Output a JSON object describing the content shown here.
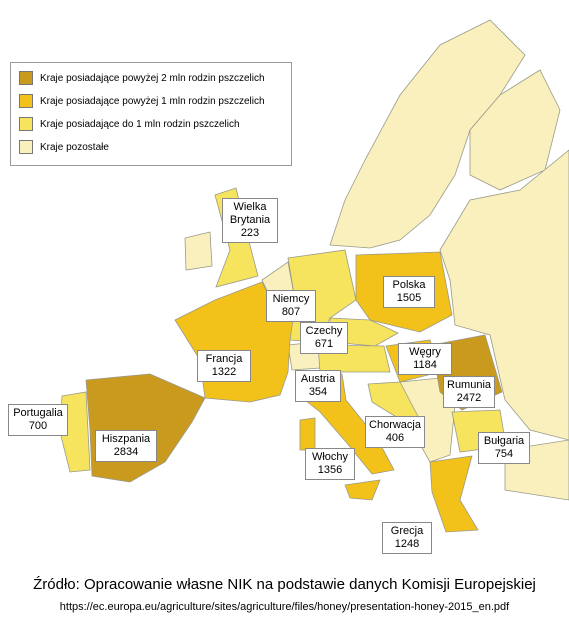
{
  "legend": {
    "items": [
      {
        "label": "Kraje posiadające powyżej 2 mln rodzin pszczelich",
        "color": "#c99a1e"
      },
      {
        "label": "Kraje posiadające powyżej 1 mln rodzin pszczelich",
        "color": "#f2c21a"
      },
      {
        "label": "Kraje posiadające do 1 mln rodzin pszczelich",
        "color": "#f7e45e"
      },
      {
        "label": "Kraje pozostałe",
        "color": "#f9f0bd"
      }
    ]
  },
  "countries": [
    {
      "name": "Wielka Brytania",
      "value": 223,
      "color": "#f7e45e"
    },
    {
      "name": "Niemcy",
      "value": 807,
      "color": "#f7e45e"
    },
    {
      "name": "Polska",
      "value": 1505,
      "color": "#f2c21a"
    },
    {
      "name": "Francja",
      "value": 1322,
      "color": "#f2c21a"
    },
    {
      "name": "Czechy",
      "value": 671,
      "color": "#f7e45e"
    },
    {
      "name": "Węgry",
      "value": 1184,
      "color": "#f2c21a"
    },
    {
      "name": "Austria",
      "value": 354,
      "color": "#f7e45e"
    },
    {
      "name": "Rumunia",
      "value": 2472,
      "color": "#c99a1e"
    },
    {
      "name": "Portugalia",
      "value": 700,
      "color": "#f7e45e"
    },
    {
      "name": "Hiszpania",
      "value": 2834,
      "color": "#c99a1e"
    },
    {
      "name": "Chorwacja",
      "value": 406,
      "color": "#f7e45e"
    },
    {
      "name": "Bułgaria",
      "value": 754,
      "color": "#f7e45e"
    },
    {
      "name": "Włochy",
      "value": 1356,
      "color": "#f2c21a"
    },
    {
      "name": "Grecja",
      "value": 1248,
      "color": "#f2c21a"
    }
  ],
  "source": {
    "text": "Źródło: Opracowanie własne NIK na podstawie danych Komisji Europejskiej",
    "url": "https://ec.europa.eu/agriculture/sites/agriculture/files/honey/presentation-honey-2015_en.pdf"
  }
}
